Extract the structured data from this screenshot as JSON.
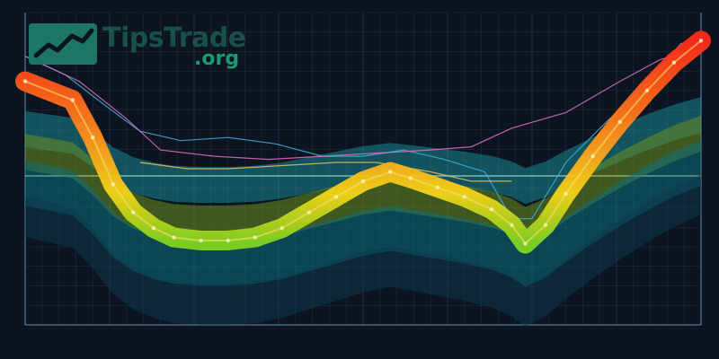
{
  "brand": {
    "name": "TipsTrade",
    "suffix": ".org",
    "mark_icon": "rising-trend-icon",
    "mark_color": "#1c7566",
    "suffix_color": "#1a9a6e"
  },
  "colors": {
    "background": "#0b1420",
    "heat_low": "#7ed321",
    "heat_mid": "#f5c518",
    "heat_high": "#ff2a1a",
    "band_teal": "#0f6f7c",
    "band_olive": "#6b8f1f",
    "line_pink": "#e070c0",
    "line_cyan": "#40b0d8",
    "line_gold": "#e8c060"
  },
  "chart_data": {
    "type": "line",
    "title": "",
    "xlabel": "",
    "ylabel": "",
    "grid": true,
    "xlim": [
      0,
      100
    ],
    "ylim": [
      0,
      100
    ],
    "series": [
      {
        "values": [
          [
            0,
            78
          ],
          [
            7,
            72
          ],
          [
            10,
            60
          ],
          [
            13,
            45
          ],
          [
            16,
            36
          ],
          [
            19,
            31
          ],
          [
            22,
            28
          ],
          [
            26,
            27
          ],
          [
            30,
            27
          ],
          [
            34,
            28
          ],
          [
            38,
            31
          ],
          [
            42,
            36
          ],
          [
            46,
            41
          ],
          [
            50,
            46
          ],
          [
            54,
            49
          ],
          [
            57,
            47
          ],
          [
            61,
            44
          ],
          [
            65,
            41
          ],
          [
            69,
            37
          ],
          [
            72,
            32
          ],
          [
            74,
            26
          ],
          [
            77,
            32
          ],
          [
            80,
            42
          ],
          [
            84,
            54
          ],
          [
            88,
            65
          ],
          [
            92,
            75
          ],
          [
            96,
            84
          ],
          [
            100,
            91
          ]
        ]
      },
      {
        "values": [
          [
            0,
            86
          ],
          [
            6,
            80
          ],
          [
            12,
            70
          ],
          [
            17,
            62
          ],
          [
            23,
            59
          ],
          [
            30,
            60
          ],
          [
            37,
            58
          ],
          [
            44,
            54
          ],
          [
            50,
            54
          ],
          [
            56,
            56
          ],
          [
            62,
            53
          ],
          [
            68,
            49
          ],
          [
            72,
            34
          ],
          [
            75,
            34
          ],
          [
            80,
            52
          ],
          [
            86,
            65
          ],
          [
            92,
            77
          ],
          [
            97,
            90
          ],
          [
            100,
            92
          ]
        ]
      },
      {
        "values": [
          [
            0,
            86
          ],
          [
            8,
            78
          ],
          [
            15,
            66
          ],
          [
            20,
            56
          ],
          [
            28,
            54
          ],
          [
            36,
            53
          ],
          [
            44,
            54
          ],
          [
            52,
            55
          ],
          [
            60,
            56
          ],
          [
            66,
            57
          ],
          [
            72,
            63
          ],
          [
            80,
            68
          ],
          [
            88,
            78
          ],
          [
            94,
            85
          ],
          [
            100,
            88
          ]
        ]
      },
      {
        "values": [
          [
            17,
            52
          ],
          [
            24,
            50
          ],
          [
            30,
            50
          ],
          [
            38,
            51
          ],
          [
            46,
            52
          ],
          [
            52,
            52
          ],
          [
            60,
            49
          ],
          [
            66,
            46
          ],
          [
            72,
            46
          ]
        ]
      }
    ]
  }
}
